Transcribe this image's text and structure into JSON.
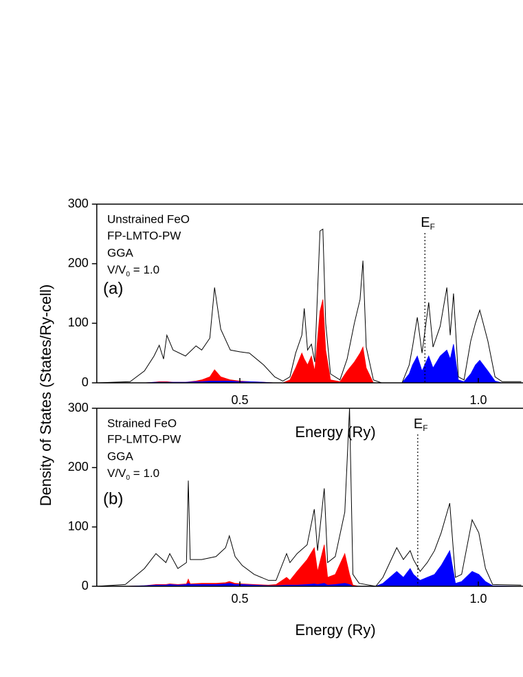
{
  "chart_data": [
    {
      "type": "area",
      "y_label": "Density of States (States/Ry-cell)",
      "x_label": "Energy (Ry)",
      "annotations": [
        "Unstrained FeO",
        "FP-LMTO-PW",
        "GGA"
      ],
      "ratio_label": {
        "text": "V/V",
        "sub": "0",
        "rest": " = 1.0"
      },
      "panel_label": "(a)",
      "fermi_label": {
        "text": "E",
        "sub": "F"
      },
      "fermi_level": 0.888,
      "xlim": [
        0.2,
        1.1
      ],
      "xticks": [
        0.5,
        {
          "value": 1.0,
          "label": "1.0"
        }
      ],
      "ylim": [
        0,
        300
      ],
      "yticks": [
        0,
        100,
        200,
        300
      ],
      "x": [
        0.2,
        0.27,
        0.3,
        0.32,
        0.331,
        0.34,
        0.347,
        0.36,
        0.386,
        0.408,
        0.42,
        0.437,
        0.447,
        0.46,
        0.48,
        0.5,
        0.52,
        0.55,
        0.573,
        0.59,
        0.605,
        0.617,
        0.63,
        0.635,
        0.642,
        0.65,
        0.657,
        0.668,
        0.674,
        0.68,
        0.69,
        0.71,
        0.725,
        0.74,
        0.752,
        0.758,
        0.765,
        0.78,
        0.797,
        0.84,
        0.855,
        0.862,
        0.872,
        0.882,
        0.896,
        0.905,
        0.92,
        0.934,
        0.941,
        0.948,
        0.958,
        0.97,
        0.984,
        0.994,
        1.003,
        1.02,
        1.035,
        1.05,
        1.09
      ],
      "series": [
        {
          "color": "#000000",
          "fill": false,
          "values": [
            0,
            2,
            20,
            45,
            63,
            40,
            80,
            55,
            45,
            62,
            55,
            75,
            160,
            90,
            55,
            52,
            50,
            30,
            10,
            3,
            10,
            50,
            80,
            125,
            55,
            65,
            35,
            255,
            258,
            100,
            15,
            5,
            40,
            100,
            140,
            205,
            60,
            5,
            0,
            0,
            30,
            60,
            110,
            50,
            135,
            60,
            95,
            160,
            80,
            150,
            10,
            5,
            70,
            100,
            122,
            70,
            10,
            2,
            2
          ]
        },
        {
          "color": "#ff0000",
          "fill": true,
          "values": [
            0,
            0,
            0,
            1,
            2,
            2,
            2,
            1,
            1,
            3,
            5,
            10,
            22,
            10,
            5,
            3,
            2,
            1,
            0,
            0,
            5,
            25,
            50,
            40,
            30,
            45,
            20,
            120,
            140,
            55,
            5,
            2,
            20,
            35,
            50,
            60,
            25,
            0,
            0,
            0,
            0,
            0,
            0,
            0,
            0,
            0,
            0,
            0,
            0,
            0,
            0,
            0,
            0,
            0,
            0,
            0,
            0,
            0,
            0
          ]
        },
        {
          "color": "#0000ff",
          "fill": true,
          "values": [
            0,
            0,
            0,
            1,
            1,
            1,
            1,
            1,
            1,
            2,
            2,
            3,
            3,
            3,
            3,
            2,
            2,
            1,
            0,
            0,
            0,
            0,
            0,
            0,
            0,
            0,
            0,
            0,
            0,
            0,
            0,
            0,
            0,
            0,
            0,
            0,
            0,
            0,
            0,
            0,
            15,
            30,
            45,
            20,
            45,
            25,
            45,
            55,
            40,
            65,
            5,
            2,
            15,
            30,
            38,
            20,
            3,
            0,
            0
          ]
        }
      ]
    },
    {
      "type": "area",
      "x_label": "Energy (Ry)",
      "annotations": [
        "Strained FeO",
        "FP-LMTO-PW",
        "GGA"
      ],
      "ratio_label": {
        "text": "V/V",
        "sub": "0",
        "rest": " = 1.0"
      },
      "panel_label": "(b)",
      "fermi_label": {
        "text": "E",
        "sub": "F"
      },
      "fermi_level": 0.873,
      "xlim": [
        0.2,
        1.1
      ],
      "xticks": [
        0.5,
        {
          "value": 1.0,
          "label": "1.0"
        }
      ],
      "ylim": [
        0,
        300
      ],
      "yticks": [
        0,
        100,
        200,
        300
      ],
      "x": [
        0.2,
        0.26,
        0.3,
        0.324,
        0.345,
        0.353,
        0.37,
        0.388,
        0.392,
        0.396,
        0.42,
        0.45,
        0.47,
        0.478,
        0.49,
        0.505,
        0.53,
        0.56,
        0.576,
        0.598,
        0.605,
        0.62,
        0.641,
        0.656,
        0.663,
        0.677,
        0.684,
        0.7,
        0.72,
        0.73,
        0.737,
        0.75,
        0.785,
        0.8,
        0.829,
        0.843,
        0.857,
        0.864,
        0.878,
        0.893,
        0.908,
        0.922,
        0.94,
        0.952,
        0.965,
        0.987,
        1.001,
        1.015,
        1.03,
        1.09
      ],
      "series": [
        {
          "color": "#000000",
          "fill": false,
          "values": [
            0,
            3,
            30,
            55,
            40,
            55,
            30,
            40,
            178,
            45,
            45,
            50,
            65,
            85,
            50,
            35,
            20,
            10,
            10,
            55,
            40,
            55,
            70,
            130,
            60,
            165,
            40,
            50,
            125,
            300,
            20,
            5,
            0,
            15,
            65,
            45,
            60,
            45,
            25,
            40,
            60,
            90,
            140,
            15,
            20,
            112,
            90,
            30,
            3,
            2
          ]
        },
        {
          "color": "#ff0000",
          "fill": true,
          "values": [
            0,
            0,
            1,
            3,
            3,
            4,
            3,
            4,
            12,
            4,
            5,
            5,
            6,
            8,
            5,
            4,
            3,
            2,
            3,
            15,
            10,
            25,
            45,
            65,
            25,
            70,
            15,
            20,
            55,
            20,
            2,
            0,
            0,
            0,
            0,
            0,
            0,
            0,
            0,
            0,
            0,
            0,
            0,
            0,
            0,
            0,
            0,
            0,
            0,
            0
          ]
        },
        {
          "color": "#0000ff",
          "fill": true,
          "values": [
            0,
            0,
            1,
            2,
            2,
            3,
            2,
            3,
            5,
            3,
            3,
            3,
            4,
            5,
            3,
            3,
            2,
            1,
            1,
            2,
            2,
            2,
            3,
            4,
            3,
            5,
            2,
            3,
            5,
            3,
            0,
            0,
            0,
            5,
            25,
            15,
            30,
            20,
            10,
            15,
            20,
            35,
            60,
            5,
            8,
            25,
            20,
            8,
            1,
            0
          ]
        }
      ]
    }
  ]
}
